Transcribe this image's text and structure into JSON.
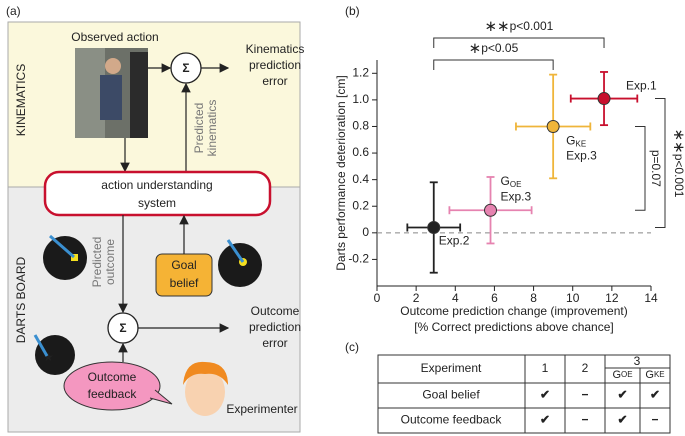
{
  "diagram": {
    "panel_label": "(a)",
    "regions": [
      "KINEMATICS",
      "DARTS BOARD"
    ],
    "observed_action": "Observed action",
    "sum_symbol": "Σ",
    "kinematics_error": [
      "Kinematics",
      "prediction",
      "error"
    ],
    "predicted_kinematics": [
      "Predicted",
      "kinematics"
    ],
    "system": [
      "action understanding",
      "system"
    ],
    "predicted_outcome": [
      "Predicted",
      "outcome"
    ],
    "goal_belief": [
      "Goal",
      "belief"
    ],
    "outcome_error": [
      "Outcome",
      "prediction",
      "error"
    ],
    "outcome_feedback": [
      "Outcome",
      "feedback"
    ],
    "experimenter": "Experimenter"
  },
  "chart_data": {
    "type": "scatter",
    "panel_label": "(b)",
    "ylabel": "Darts performance deterioration [cm]",
    "xlabel": [
      "Outcome prediction change (improvement)",
      "[% Correct predictions above chance]"
    ],
    "xlim": [
      0,
      14
    ],
    "xticks": [
      0,
      2,
      4,
      6,
      8,
      10,
      12,
      14
    ],
    "ylim": [
      -0.4,
      1.3
    ],
    "yticks": [
      -0.2,
      0,
      0.2,
      0.4,
      0.6,
      0.8,
      {
        "value": 1,
        "label": "1.0"
      },
      1.2
    ],
    "reference_line": 0,
    "series": [
      {
        "name": "Exp.1",
        "color": "#c8102e",
        "x": [
          11.6
        ],
        "values": [
          1.01
        ],
        "xerr": [
          1.7
        ],
        "yerr": [
          0.2
        ]
      },
      {
        "name": "Exp.3",
        "group": "G",
        "group_sub": "KE",
        "color": "#efb53a",
        "x": [
          9
        ],
        "values": [
          0.8
        ],
        "xerr": [
          1.9
        ],
        "yerr": [
          0.39
        ]
      },
      {
        "name": "Exp.3",
        "group": "G",
        "group_sub": "OE",
        "color": "#e683b0",
        "x": [
          5.8
        ],
        "values": [
          0.17
        ],
        "xerr": [
          2.1
        ],
        "yerr": [
          0.25
        ]
      },
      {
        "name": "Exp.2",
        "color": "#222222",
        "x": [
          2.9
        ],
        "values": [
          0.04
        ],
        "xerr": [
          1.35
        ],
        "yerr": [
          0.34
        ]
      }
    ],
    "annotations": [
      {
        "stars": "∗∗",
        "text": "p<0.001"
      },
      {
        "stars": "∗",
        "text": "p<0.05"
      },
      {
        "stars": "∗∗",
        "text": "p<0.001"
      },
      {
        "text": "p=0.07"
      }
    ]
  },
  "table": {
    "panel_label": "(c)",
    "header": [
      "Experiment",
      "1",
      "2",
      "3"
    ],
    "subheader": [
      {
        "main": "G",
        "sub": "OE"
      },
      {
        "main": "G",
        "sub": "KE"
      }
    ],
    "rows": [
      {
        "label": "Goal belief",
        "color": "#e3a21a",
        "cells": [
          "✔",
          "−",
          "✔",
          "✔"
        ]
      },
      {
        "label": "Outcome feedback",
        "color": "#d4177f",
        "cells": [
          "✔",
          "−",
          "✔",
          "−"
        ]
      }
    ]
  }
}
